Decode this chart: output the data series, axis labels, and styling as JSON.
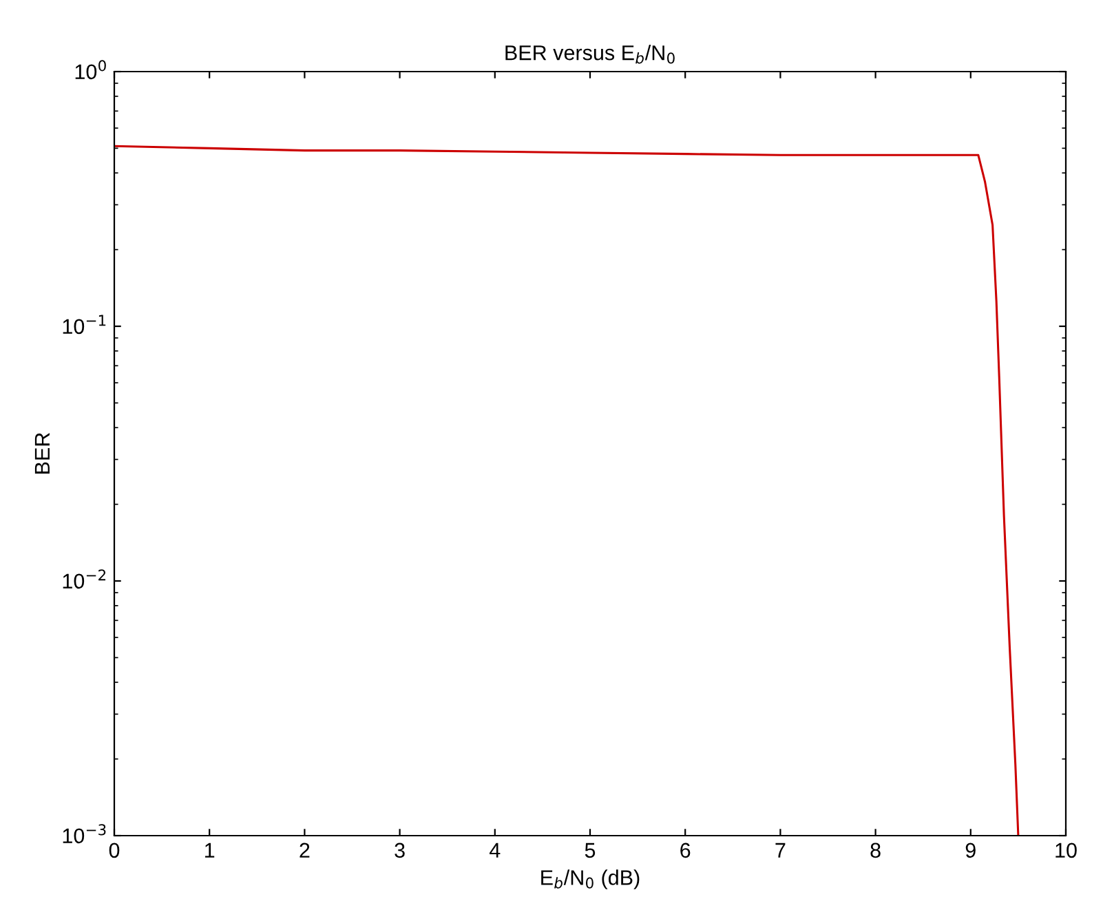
{
  "chart_data": {
    "type": "line",
    "title": "BER versus E$_{b}$/N$_{0}$",
    "xlabel": "E$_{b}$/N$_{0}$ (dB)",
    "ylabel": "BER",
    "x": [
      0,
      1,
      2,
      3,
      4,
      5,
      6,
      7,
      8,
      9,
      9.08,
      9.15,
      9.23,
      9.27,
      9.3,
      9.35,
      9.41,
      9.47,
      9.5
    ],
    "series": [
      {
        "color": "#cc0000",
        "values": [
          0.51,
          0.5,
          0.49,
          0.49,
          0.485,
          0.48,
          0.475,
          0.47,
          0.47,
          0.47,
          0.47,
          0.37,
          0.25,
          0.126,
          0.063,
          0.018,
          0.0055,
          0.0019,
          0.001
        ]
      }
    ],
    "log": "y",
    "xlim": [
      0,
      10
    ],
    "ylim": [
      0.001,
      1
    ],
    "xticks": [
      0,
      1,
      2,
      3,
      4,
      5,
      6,
      7,
      8,
      9,
      10
    ],
    "yticks": [
      {
        "value": 0.001,
        "label": "10$^{−3}$"
      },
      {
        "value": 0.01,
        "label": "10$^{−2}$"
      },
      {
        "value": 0.1,
        "label": "10$^{−1}$"
      },
      {
        "value": 1,
        "label": "10$^{0}$"
      }
    ],
    "grid": false,
    "legend": false,
    "marker": "none",
    "line_style": "solid"
  }
}
